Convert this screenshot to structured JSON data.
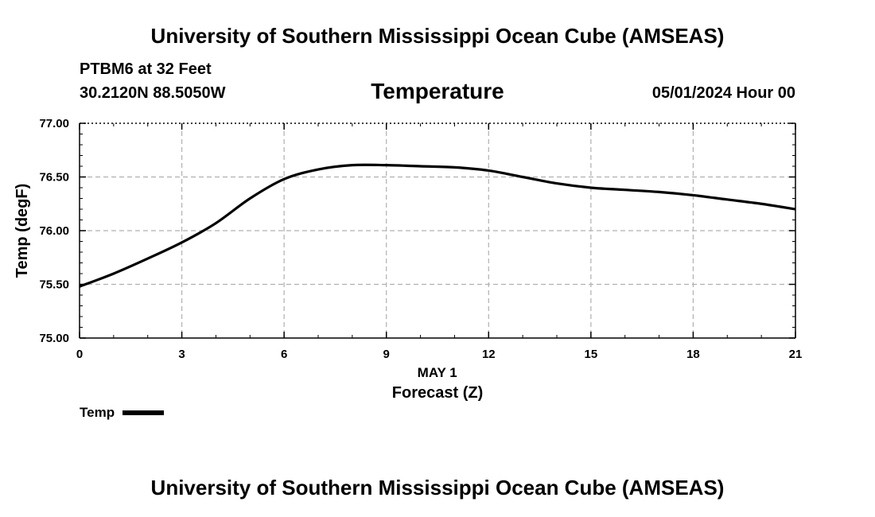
{
  "header": {
    "title": "University of Southern Mississippi Ocean Cube (AMSEAS)",
    "station": "PTBM6 at 32 Feet",
    "coordinates": "30.2120N  88.5050W",
    "variable": "Temperature",
    "datetime": "05/01/2024 Hour 00"
  },
  "footer": {
    "title": "University of Southern Mississippi Ocean Cube (AMSEAS)"
  },
  "legend": {
    "label": "Temp",
    "color": "#000000"
  },
  "chart_data": {
    "type": "line",
    "title": "Temperature",
    "xlabel": "Forecast (Z)",
    "xsublabel": "MAY 1",
    "ylabel": "Temp (degF)",
    "xlim": [
      0,
      21
    ],
    "ylim": [
      75.0,
      77.0
    ],
    "xticks": [
      0,
      3,
      6,
      9,
      12,
      15,
      18,
      21
    ],
    "xtick_labels": [
      "0",
      "3",
      "6",
      "9",
      "12",
      "15",
      "18",
      "21"
    ],
    "yticks": [
      75.0,
      75.5,
      76.0,
      76.5,
      77.0
    ],
    "ytick_labels": [
      "75.00",
      "75.50",
      "76.00",
      "76.50",
      "77.00"
    ],
    "grid": true,
    "legend_position": "bottom-left",
    "series": [
      {
        "name": "Temp",
        "color": "#000000",
        "x": [
          0,
          1,
          2,
          3,
          4,
          5,
          6,
          7,
          8,
          9,
          10,
          11,
          12,
          13,
          14,
          15,
          16,
          17,
          18,
          19,
          20,
          21
        ],
        "values": [
          75.48,
          75.6,
          75.74,
          75.89,
          76.07,
          76.3,
          76.48,
          76.57,
          76.61,
          76.61,
          76.6,
          76.59,
          76.56,
          76.5,
          76.44,
          76.4,
          76.38,
          76.36,
          76.33,
          76.29,
          76.25,
          76.2
        ]
      }
    ]
  }
}
